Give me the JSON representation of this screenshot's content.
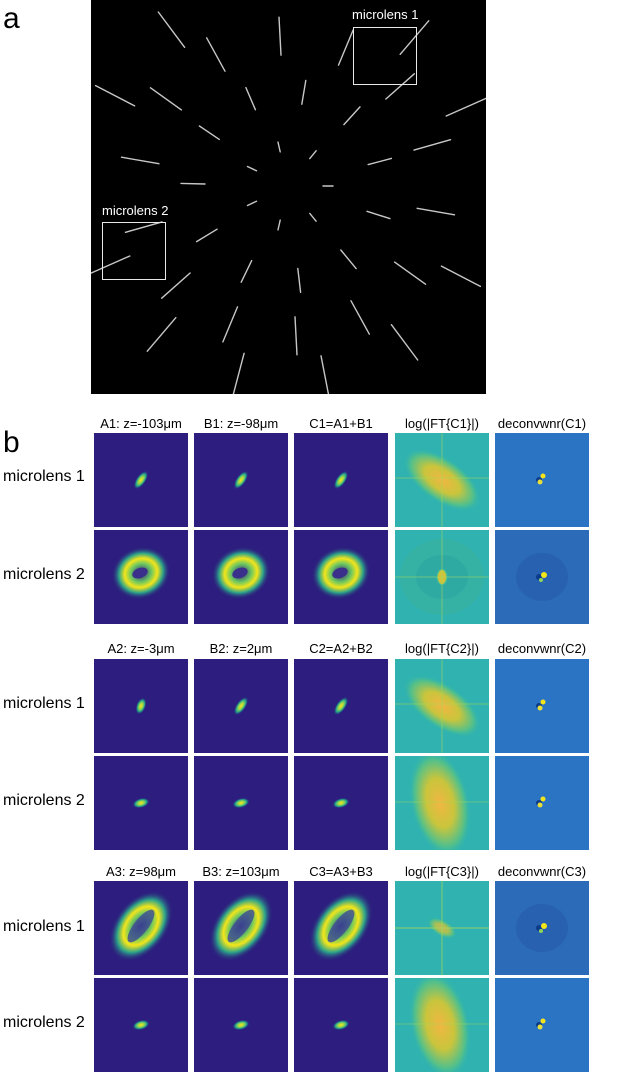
{
  "panel_a": {
    "label": "a",
    "roi_labels": [
      "microlens 1",
      "microlens 2"
    ]
  },
  "panel_b": {
    "label": "b",
    "row_labels": [
      "microlens 1",
      "microlens 2"
    ],
    "groups": [
      {
        "headers": [
          "A1: z=-103μm",
          "B1: z=-98μm",
          "C1=A1+B1",
          "log(|FT{C1}|)",
          "deconvwnr(C1)"
        ],
        "rows": [
          [
            "spot-small-tilted",
            "spot-small-tilted",
            "spot-small-tilted",
            "fft-wide-tilted",
            "decon-dot"
          ],
          [
            "ring",
            "ring",
            "ring",
            "fft-ring-pattern",
            "decon-noisy"
          ]
        ]
      },
      {
        "headers": [
          "A2: z=-3μm",
          "B2: z=2μm",
          "C2=A2+B2",
          "log(|FT{C2}|)",
          "deconvwnr(C2)"
        ],
        "rows": [
          [
            "spot-small",
            "spot-small-tilted",
            "spot-small-tilted",
            "fft-wide-tilted",
            "decon-dot"
          ],
          [
            "spot-tiny",
            "spot-tiny",
            "spot-tiny",
            "fft-wide-vertical",
            "decon-dot"
          ]
        ]
      },
      {
        "headers": [
          "A3: z=98μm",
          "B3: z=103μm",
          "C3=A3+B3",
          "log(|FT{C3}|)",
          "deconvwnr(C3)"
        ],
        "rows": [
          [
            "ring-large",
            "ring-large",
            "ring-large",
            "fft-small-cross",
            "decon-noisy"
          ],
          [
            "spot-tiny",
            "spot-tiny",
            "spot-tiny",
            "fft-wide-vertical",
            "decon-dot"
          ]
        ]
      }
    ]
  },
  "colors": {
    "background_dark": "#2c1d7e",
    "background_fft": "#2fb2b0",
    "background_decon": "#2b74c4",
    "spot_core": "#f4e51a"
  }
}
